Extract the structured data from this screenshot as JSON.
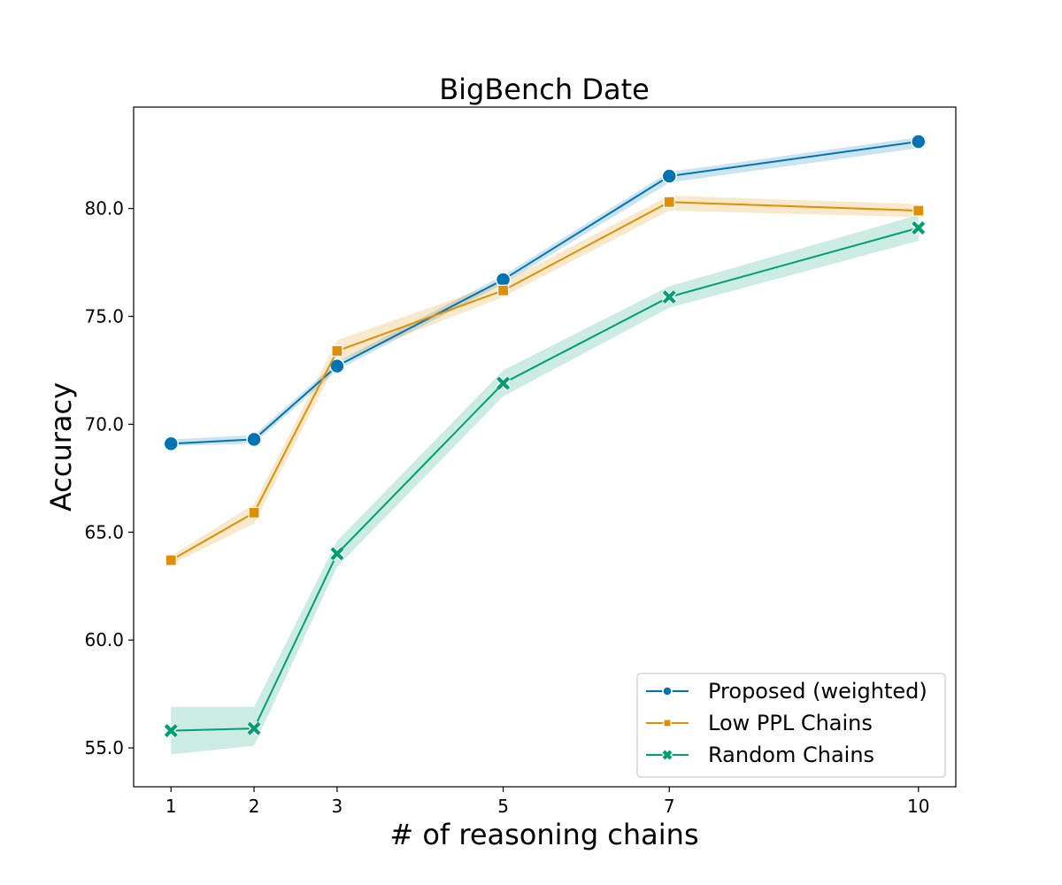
{
  "chart_data": {
    "type": "line",
    "title": "BigBench Date",
    "xlabel": "# of reasoning chains",
    "ylabel": "Accuracy",
    "x": [
      1,
      2,
      3,
      5,
      7,
      10
    ],
    "x_tick_labels": [
      "1",
      "2",
      "3",
      "5",
      "7",
      "10"
    ],
    "xlim": [
      0.55,
      10.45
    ],
    "ylim": [
      53.2,
      84.7
    ],
    "y_ticks": [
      55.0,
      60.0,
      65.0,
      70.0,
      75.0,
      80.0
    ],
    "y_tick_labels": [
      "55.0",
      "60.0",
      "65.0",
      "70.0",
      "75.0",
      "80.0"
    ],
    "grid": false,
    "legend_position": "lower-right",
    "series": [
      {
        "name": "Proposed (weighted)",
        "color": "#0173b2",
        "marker": "circle",
        "values": [
          69.1,
          69.3,
          72.7,
          76.7,
          81.5,
          83.1
        ],
        "lower": [
          69.0,
          69.1,
          72.5,
          76.5,
          81.2,
          82.8
        ],
        "upper": [
          69.3,
          69.5,
          72.9,
          76.9,
          81.7,
          83.3
        ]
      },
      {
        "name": "Low PPL Chains",
        "color": "#de8f05",
        "marker": "square",
        "values": [
          63.7,
          65.9,
          73.4,
          76.2,
          80.3,
          79.9
        ],
        "lower": [
          63.5,
          65.4,
          72.9,
          75.9,
          79.9,
          79.6
        ],
        "upper": [
          63.9,
          66.3,
          73.9,
          76.6,
          80.6,
          80.2
        ]
      },
      {
        "name": "Random Chains",
        "color": "#029e73",
        "marker": "x",
        "values": [
          55.8,
          55.9,
          64.0,
          71.9,
          75.9,
          79.1
        ],
        "lower": [
          54.7,
          55.1,
          63.4,
          71.3,
          75.4,
          78.5
        ],
        "upper": [
          56.9,
          56.9,
          64.6,
          72.5,
          76.4,
          79.7
        ]
      }
    ]
  }
}
